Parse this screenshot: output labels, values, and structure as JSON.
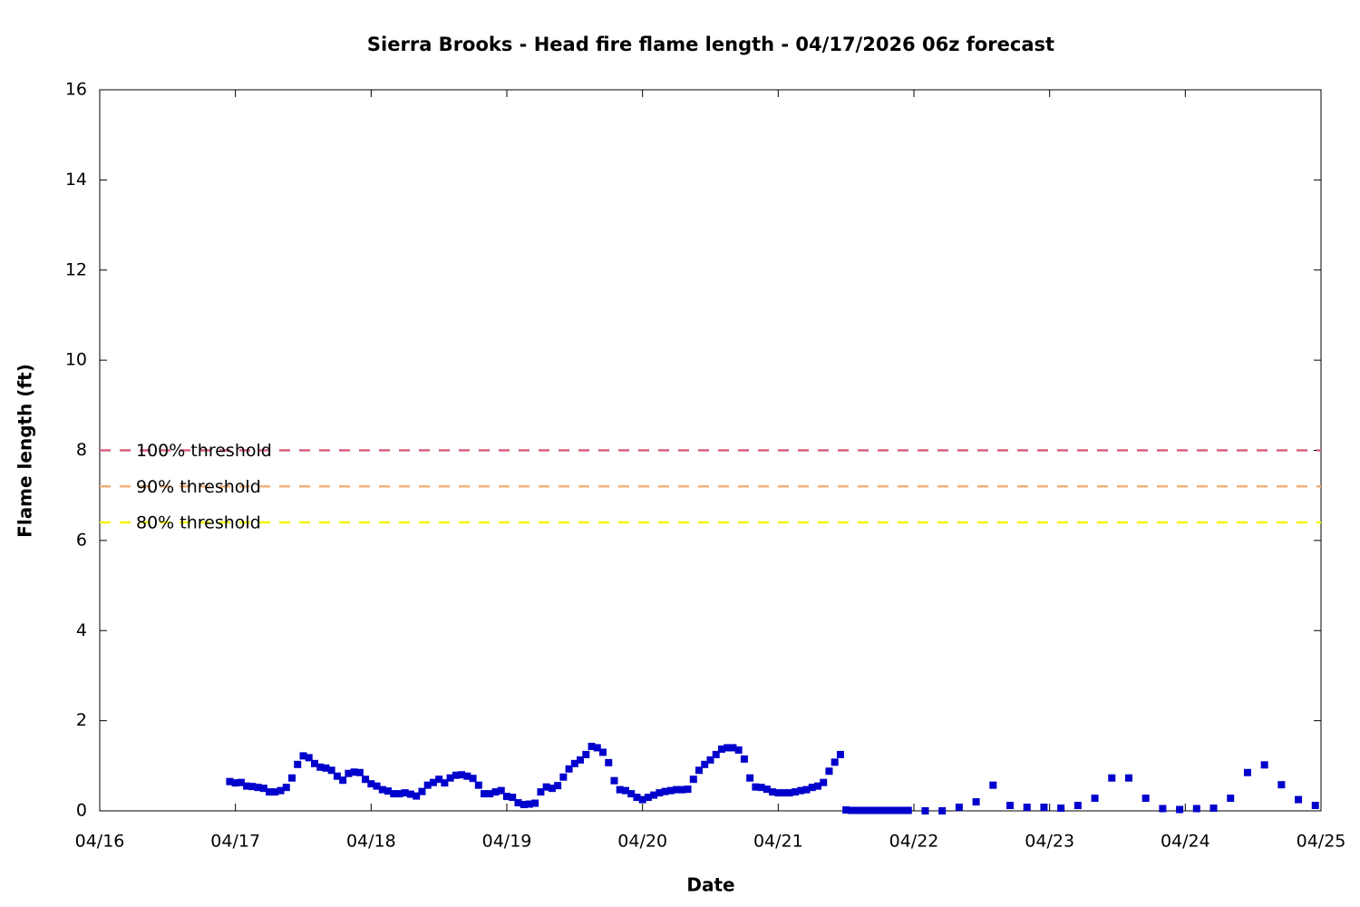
{
  "chart_data": {
    "type": "scatter",
    "title": "Sierra Brooks - Head fire flame length - 04/17/2026 06z forecast",
    "xlabel": "Date",
    "ylabel": "Flame length (ft)",
    "xlim": [
      0,
      216
    ],
    "xticks": [
      {
        "value": 0,
        "label": "04/16"
      },
      {
        "value": 24,
        "label": "04/17"
      },
      {
        "value": 48,
        "label": "04/18"
      },
      {
        "value": 72,
        "label": "04/19"
      },
      {
        "value": 96,
        "label": "04/20"
      },
      {
        "value": 120,
        "label": "04/21"
      },
      {
        "value": 144,
        "label": "04/22"
      },
      {
        "value": 168,
        "label": "04/23"
      },
      {
        "value": 192,
        "label": "04/24"
      },
      {
        "value": 216,
        "label": "04/25"
      }
    ],
    "ylim": [
      0,
      16
    ],
    "yticks": [
      0,
      2,
      4,
      6,
      8,
      10,
      12,
      14,
      16
    ],
    "color": "#0000cc",
    "x": [
      23,
      24,
      25,
      26,
      27,
      28,
      29,
      30,
      31,
      32,
      33,
      34,
      35,
      36,
      37,
      38,
      39,
      40,
      41,
      42,
      43,
      44,
      45,
      46,
      47,
      48,
      49,
      50,
      51,
      52,
      53,
      54,
      55,
      56,
      57,
      58,
      59,
      60,
      61,
      62,
      63,
      64,
      65,
      66,
      67,
      68,
      69,
      70,
      71,
      72,
      73,
      74,
      75,
      76,
      77,
      78,
      79,
      80,
      81,
      82,
      83,
      84,
      85,
      86,
      87,
      88,
      89,
      90,
      91,
      92,
      93,
      94,
      95,
      96,
      97,
      98,
      99,
      100,
      101,
      102,
      103,
      104,
      105,
      106,
      107,
      108,
      109,
      110,
      111,
      112,
      113,
      114,
      115,
      116,
      117,
      118,
      119,
      120,
      121,
      122,
      123,
      124,
      125,
      126,
      127,
      128,
      129,
      130,
      131,
      132,
      133,
      134,
      135,
      136,
      137,
      138,
      139,
      140,
      141,
      142,
      143,
      146,
      149,
      152,
      155,
      158,
      161,
      164,
      167,
      170,
      173,
      176,
      179,
      182,
      185,
      188,
      191,
      194,
      197,
      200,
      203,
      206,
      209,
      212,
      215
    ],
    "values": [
      0.65,
      0.62,
      0.63,
      0.55,
      0.54,
      0.52,
      0.5,
      0.42,
      0.42,
      0.45,
      0.52,
      0.73,
      1.03,
      1.22,
      1.18,
      1.05,
      0.97,
      0.95,
      0.9,
      0.77,
      0.68,
      0.83,
      0.86,
      0.85,
      0.7,
      0.6,
      0.55,
      0.47,
      0.44,
      0.38,
      0.38,
      0.4,
      0.37,
      0.33,
      0.43,
      0.57,
      0.63,
      0.7,
      0.62,
      0.73,
      0.79,
      0.8,
      0.77,
      0.72,
      0.57,
      0.38,
      0.38,
      0.42,
      0.45,
      0.32,
      0.3,
      0.18,
      0.14,
      0.15,
      0.17,
      0.42,
      0.53,
      0.5,
      0.56,
      0.75,
      0.93,
      1.05,
      1.13,
      1.25,
      1.43,
      1.4,
      1.3,
      1.07,
      0.67,
      0.47,
      0.45,
      0.38,
      0.3,
      0.25,
      0.3,
      0.35,
      0.4,
      0.43,
      0.45,
      0.47,
      0.47,
      0.48,
      0.7,
      0.9,
      1.03,
      1.13,
      1.25,
      1.37,
      1.4,
      1.4,
      1.35,
      1.15,
      0.73,
      0.53,
      0.52,
      0.48,
      0.42,
      0.4,
      0.4,
      0.4,
      0.42,
      0.45,
      0.47,
      0.52,
      0.55,
      0.63,
      0.88,
      1.08,
      1.25,
      0.02,
      0.01,
      0.01,
      0.01,
      0.01,
      0.01,
      0.01,
      0.01,
      0.01,
      0.01,
      0.01,
      0.01,
      0,
      0,
      0.08,
      0.2,
      0.57,
      0.12,
      0.08,
      0.08,
      0.06,
      0.12,
      0.28,
      0.73,
      0.73,
      0.28,
      0.05,
      0.03,
      0.05,
      0.06,
      0.28,
      0.85,
      1.02,
      0.58,
      0.25,
      0.12
    ],
    "thresholds": [
      {
        "name": "100% threshold",
        "value": 8,
        "color": "#d9607e"
      },
      {
        "name": "90% threshold",
        "value": 7.2,
        "color": "#f2b27a"
      },
      {
        "name": "80% threshold",
        "value": 6.4,
        "color": "#f5f500"
      }
    ]
  }
}
